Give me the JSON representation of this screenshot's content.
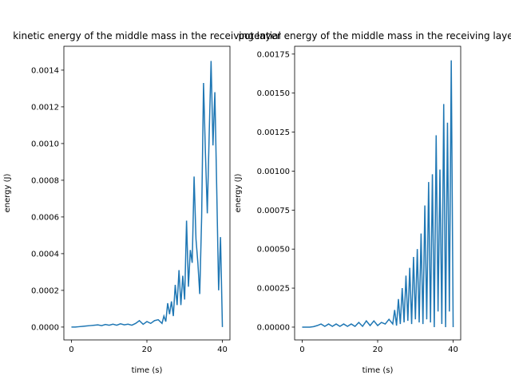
{
  "chart_data": [
    {
      "type": "line",
      "title": "kinetic energy of the middle mass in the receiving layer",
      "x_label": "time (s)",
      "y_label": "energy (J)",
      "x": [
        0,
        1,
        2,
        3,
        4,
        5,
        6,
        7,
        8,
        9,
        10,
        11,
        12,
        13,
        14,
        15,
        16,
        17,
        18,
        19,
        20,
        21,
        22,
        23,
        24,
        24.5,
        25,
        25.5,
        26,
        26.5,
        27,
        27.5,
        28,
        28.5,
        29,
        29.5,
        30,
        30.5,
        31,
        31.5,
        32,
        32.5,
        33,
        33.5,
        34,
        34.5,
        35,
        35.5,
        36,
        36.5,
        37,
        37.5,
        38,
        38.5,
        39,
        39.5,
        40
      ],
      "series": [
        {
          "name": "kinetic",
          "color": "#1f77b4",
          "values": [
            0,
            0,
            2e-06,
            4e-06,
            6e-06,
            8e-06,
            1e-05,
            1.2e-05,
            8e-06,
            1.4e-05,
            1e-05,
            1.6e-05,
            1e-05,
            1.8e-05,
            1.2e-05,
            1.6e-05,
            1e-05,
            2e-05,
            3.5e-05,
            1.5e-05,
            3e-05,
            2e-05,
            3.5e-05,
            4e-05,
            2e-05,
            6e-05,
            3e-05,
            0.00013,
            7e-05,
            0.00014,
            6e-05,
            0.00023,
            0.00012,
            0.00031,
            0.00012,
            0.00028,
            0.00015,
            0.00058,
            0.00022,
            0.00042,
            0.00035,
            0.00082,
            0.00048,
            0.00035,
            0.00018,
            0.0006,
            0.00133,
            0.00095,
            0.00062,
            0.00105,
            0.00145,
            0.00099,
            0.00128,
            0.00075,
            0.0002,
            0.00049,
            0
          ]
        }
      ],
      "xlim": [
        -2,
        42
      ],
      "xticks": [
        0,
        20,
        40
      ],
      "ylim": [
        -7e-05,
        0.00153
      ],
      "yticks": [
        {
          "value": 0,
          "label": "0.0000"
        },
        {
          "value": 0.0002,
          "label": "0.0002"
        },
        {
          "value": 0.0004,
          "label": "0.0004"
        },
        {
          "value": 0.0006,
          "label": "0.0006"
        },
        {
          "value": 0.0008,
          "label": "0.0008"
        },
        {
          "value": 0.001,
          "label": "0.0010"
        },
        {
          "value": 0.0012,
          "label": "0.0012"
        },
        {
          "value": 0.0014,
          "label": "0.0014"
        }
      ]
    },
    {
      "type": "line",
      "title": "potential energy of the middle mass in the receiving layer",
      "x_label": "time (s)",
      "y_label": "energy (J)",
      "x": [
        0,
        1,
        2,
        3,
        4,
        5,
        6,
        7,
        8,
        9,
        10,
        11,
        12,
        13,
        14,
        15,
        16,
        17,
        18,
        19,
        20,
        21,
        22,
        23,
        24,
        24.5,
        25,
        25.5,
        26,
        26.5,
        27,
        27.5,
        28,
        28.5,
        29,
        29.5,
        30,
        30.5,
        31,
        31.5,
        32,
        32.5,
        33,
        33.5,
        34,
        34.5,
        35,
        35.5,
        36,
        36.5,
        37,
        37.5,
        38,
        38.5,
        39,
        39.5,
        40
      ],
      "series": [
        {
          "name": "potential",
          "color": "#1f77b4",
          "values": [
            0,
            0,
            0,
            3e-06,
            1e-05,
            2e-05,
            5e-06,
            2e-05,
            5e-06,
            2e-05,
            5e-06,
            2e-05,
            5e-06,
            2e-05,
            5e-06,
            3e-05,
            5e-06,
            4e-05,
            1e-05,
            4e-05,
            1e-05,
            3e-05,
            2e-05,
            5e-05,
            2e-05,
            0.00011,
            1e-05,
            0.00018,
            2e-05,
            0.00025,
            3e-05,
            0.00033,
            4e-05,
            0.00038,
            2e-05,
            0.00045,
            5e-05,
            0.0005,
            3e-05,
            0.0006,
            2e-05,
            0.00078,
            5e-05,
            0.00093,
            3e-05,
            0.00098,
            0,
            0.00123,
            0.0001,
            0.00101,
            2e-05,
            0.00143,
            0,
            0.00131,
            0.0001,
            0.00171,
            0
          ]
        }
      ],
      "xlim": [
        -2,
        42
      ],
      "xticks": [
        0,
        20,
        40
      ],
      "ylim": [
        -8.2e-05,
        0.0018
      ],
      "yticks": [
        {
          "value": 0,
          "label": "0.00000"
        },
        {
          "value": 0.00025,
          "label": "0.00025"
        },
        {
          "value": 0.0005,
          "label": "0.00050"
        },
        {
          "value": 0.00075,
          "label": "0.00075"
        },
        {
          "value": 0.001,
          "label": "0.00100"
        },
        {
          "value": 0.00125,
          "label": "0.00125"
        },
        {
          "value": 0.0015,
          "label": "0.00150"
        },
        {
          "value": 0.00175,
          "label": "0.00175"
        }
      ]
    }
  ]
}
